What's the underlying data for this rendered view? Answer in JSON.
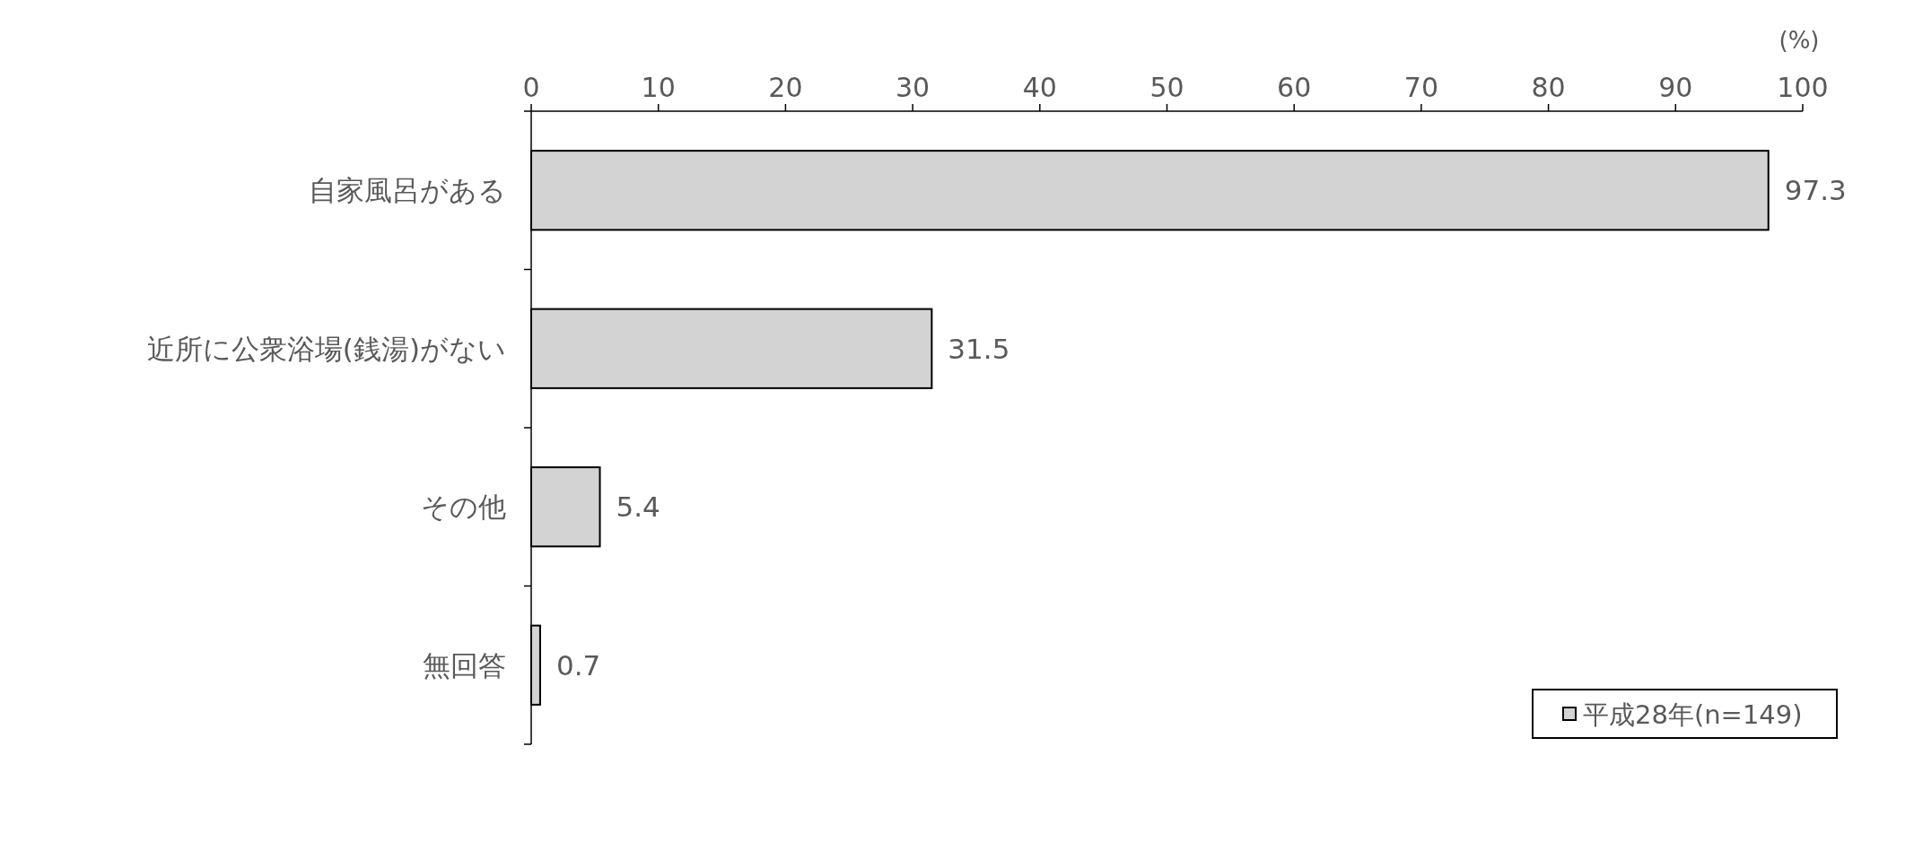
{
  "chart_data": {
    "type": "bar",
    "orientation": "horizontal",
    "xlabel": "(%)",
    "categories": [
      "自家風呂がある",
      "近所に公衆浴場(銭湯)がない",
      "その他",
      "無回答"
    ],
    "series": [
      {
        "name": "平成28年(n=149)",
        "color": "#d3d3d3",
        "values": [
          97.3,
          31.5,
          5.4,
          0.7
        ]
      }
    ],
    "xlim": [
      0,
      100
    ],
    "xticks": [
      0,
      10,
      20,
      30,
      40,
      50,
      60,
      70,
      80,
      90,
      100
    ],
    "data_labels": true,
    "legend": "bottom right",
    "grid": false
  }
}
